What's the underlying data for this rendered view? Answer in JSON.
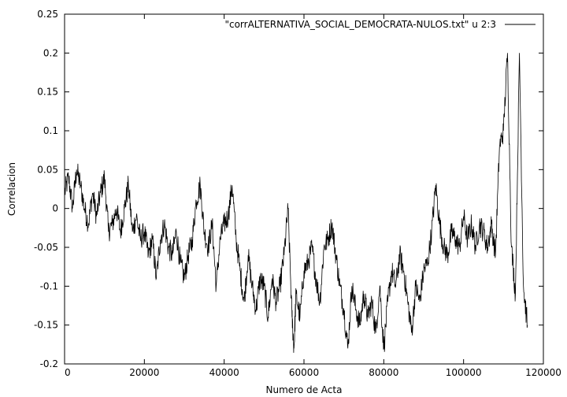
{
  "chart_data": {
    "type": "line",
    "title": "",
    "xlabel": "Numero de Acta",
    "ylabel": "Correlacion",
    "xlim": [
      0,
      120000
    ],
    "ylim": [
      -0.2,
      0.25
    ],
    "grid": false,
    "legend_position": "top-right",
    "x_ticks": [
      0,
      20000,
      40000,
      60000,
      80000,
      100000,
      120000
    ],
    "x_tick_labels": [
      "0",
      "20000",
      "40000",
      "60000",
      "80000",
      "100000",
      "120000"
    ],
    "y_ticks": [
      -0.2,
      -0.15,
      -0.1,
      -0.05,
      0,
      0.05,
      0.1,
      0.15,
      0.2,
      0.25
    ],
    "y_tick_labels": [
      "-0.2",
      "-0.15",
      "-0.1",
      "-0.05",
      "0",
      "0.05",
      "0.1",
      "0.15",
      "0.2",
      "0.25"
    ],
    "series": [
      {
        "name": "\"corrALTERNATIVA_SOCIAL_DEMOCRATA-NULOS.txt\" u 2:3",
        "color": "#000000",
        "x": [
          0,
          1000,
          2000,
          3000,
          4000,
          5000,
          6000,
          7000,
          8000,
          9000,
          10000,
          11000,
          12000,
          13000,
          14000,
          15000,
          16000,
          17000,
          18000,
          19000,
          20000,
          21000,
          22000,
          23000,
          24000,
          25000,
          26000,
          27000,
          28000,
          29000,
          30000,
          31000,
          32000,
          33000,
          34000,
          35000,
          36000,
          37000,
          38000,
          39000,
          40000,
          41000,
          42000,
          43000,
          44000,
          45000,
          46000,
          47000,
          48000,
          49000,
          50000,
          51000,
          52000,
          53000,
          54000,
          55000,
          56000,
          57000,
          57500,
          58000,
          59000,
          60000,
          61000,
          62000,
          63000,
          64000,
          65000,
          66000,
          67000,
          68000,
          69000,
          70000,
          71000,
          72000,
          73000,
          74000,
          75000,
          76000,
          77000,
          78000,
          79000,
          80000,
          81000,
          82000,
          83000,
          84000,
          85000,
          86000,
          87000,
          88000,
          89000,
          90000,
          91000,
          92000,
          93000,
          94000,
          95000,
          96000,
          97000,
          98000,
          99000,
          100000,
          101000,
          102000,
          103000,
          104000,
          105000,
          106000,
          107000,
          108000,
          109000,
          110000,
          111000,
          112000,
          113000,
          114000,
          115000,
          116000
        ],
        "y": [
          0.02,
          0.04,
          0.0,
          0.05,
          0.03,
          0.0,
          -0.02,
          0.02,
          -0.01,
          0.02,
          0.04,
          -0.03,
          -0.02,
          0.0,
          -0.03,
          0.0,
          0.03,
          -0.03,
          -0.01,
          -0.04,
          -0.03,
          -0.06,
          -0.04,
          -0.09,
          -0.04,
          -0.02,
          -0.05,
          -0.06,
          -0.03,
          -0.07,
          -0.09,
          -0.06,
          -0.04,
          0.01,
          0.03,
          -0.03,
          -0.05,
          -0.02,
          -0.1,
          -0.04,
          -0.02,
          -0.01,
          0.03,
          -0.04,
          -0.08,
          -0.12,
          -0.06,
          -0.1,
          -0.13,
          -0.09,
          -0.1,
          -0.14,
          -0.09,
          -0.12,
          -0.1,
          -0.06,
          0.0,
          -0.14,
          -0.18,
          -0.11,
          -0.14,
          -0.08,
          -0.07,
          -0.05,
          -0.09,
          -0.12,
          -0.05,
          -0.04,
          -0.02,
          -0.06,
          -0.1,
          -0.13,
          -0.18,
          -0.1,
          -0.13,
          -0.15,
          -0.11,
          -0.14,
          -0.12,
          -0.16,
          -0.1,
          -0.18,
          -0.12,
          -0.08,
          -0.1,
          -0.06,
          -0.08,
          -0.12,
          -0.16,
          -0.1,
          -0.12,
          -0.08,
          -0.07,
          -0.03,
          0.03,
          -0.02,
          -0.05,
          -0.06,
          -0.03,
          -0.04,
          -0.05,
          -0.01,
          -0.04,
          -0.02,
          -0.05,
          -0.02,
          -0.03,
          -0.05,
          -0.02,
          -0.06,
          0.08,
          0.1,
          0.2,
          -0.05,
          -0.11,
          0.2,
          -0.1,
          -0.15
        ]
      }
    ]
  }
}
